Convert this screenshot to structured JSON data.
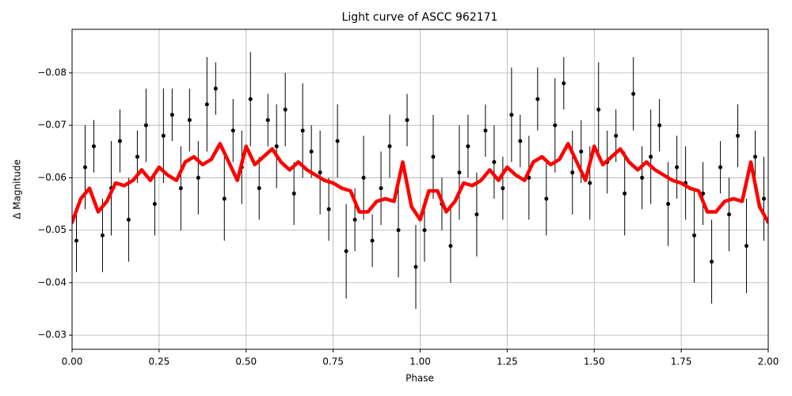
{
  "chart_data": {
    "type": "scatter",
    "title": "Light curve of ASCC 962171",
    "x_label": "Phase",
    "y_label": "Δ Magnitude",
    "xlim": [
      0,
      2
    ],
    "ylim": [
      -0.0273,
      -0.0883
    ],
    "grid": true,
    "xticks": [
      {
        "value": 0,
        "label": "0.00"
      },
      {
        "value": 0.25,
        "label": "0.25"
      },
      {
        "value": 0.5,
        "label": "0.50"
      },
      {
        "value": 0.75,
        "label": "0.75"
      },
      {
        "value": 1,
        "label": "1.00"
      },
      {
        "value": 1.25,
        "label": "1.25"
      },
      {
        "value": 1.5,
        "label": "1.50"
      },
      {
        "value": 1.75,
        "label": "1.75"
      },
      {
        "value": 2,
        "label": "2.00"
      }
    ],
    "yticks": [
      {
        "value": -0.08,
        "label": "−0.08"
      },
      {
        "value": -0.07,
        "label": "−0.07"
      },
      {
        "value": -0.06,
        "label": "−0.06"
      },
      {
        "value": -0.05,
        "label": "−0.05"
      },
      {
        "value": -0.04,
        "label": "−0.04"
      },
      {
        "value": -0.03,
        "label": "−0.03"
      }
    ],
    "series": [
      {
        "style": "errorbar",
        "color": "#000000",
        "x": [
          0.0125,
          0.0375,
          0.0625,
          0.0875,
          0.1125,
          0.1375,
          0.1625,
          0.1875,
          0.2125,
          0.2375,
          0.2625,
          0.2875,
          0.3125,
          0.3375,
          0.3625,
          0.3875,
          0.4125,
          0.4375,
          0.4625,
          0.4875,
          0.5125,
          0.5375,
          0.5625,
          0.5875,
          0.6125,
          0.6375,
          0.6625,
          0.6875,
          0.7125,
          0.7375,
          0.7625,
          0.7875,
          0.8125,
          0.8375,
          0.8625,
          0.8875,
          0.9125,
          0.9375,
          0.9625,
          0.9875,
          1.0125,
          1.0375,
          1.0625,
          1.0875,
          1.1125,
          1.1375,
          1.1625,
          1.1875,
          1.2125,
          1.2375,
          1.2625,
          1.2875,
          1.3125,
          1.3375,
          1.3625,
          1.3875,
          1.4125,
          1.4375,
          1.4625,
          1.4875,
          1.5125,
          1.5375,
          1.5625,
          1.5875,
          1.6125,
          1.6375,
          1.6625,
          1.6875,
          1.7125,
          1.7375,
          1.7625,
          1.7875,
          1.8125,
          1.8375,
          1.8625,
          1.8875,
          1.9125,
          1.9375,
          1.9625,
          1.9875
        ],
        "values": [
          -0.048,
          -0.062,
          -0.066,
          -0.049,
          -0.058,
          -0.067,
          -0.052,
          -0.064,
          -0.07,
          -0.055,
          -0.068,
          -0.072,
          -0.058,
          -0.071,
          -0.06,
          -0.074,
          -0.077,
          -0.056,
          -0.069,
          -0.062,
          -0.075,
          -0.058,
          -0.071,
          -0.066,
          -0.073,
          -0.057,
          -0.069,
          -0.065,
          -0.061,
          -0.054,
          -0.067,
          -0.046,
          -0.052,
          -0.06,
          -0.048,
          -0.058,
          -0.066,
          -0.05,
          -0.071,
          -0.043,
          -0.05,
          -0.064,
          -0.055,
          -0.047,
          -0.061,
          -0.066,
          -0.053,
          -0.069,
          -0.063,
          -0.058,
          -0.072,
          -0.067,
          -0.06,
          -0.075,
          -0.056,
          -0.07,
          -0.078,
          -0.061,
          -0.065,
          -0.059,
          -0.073,
          -0.063,
          -0.068,
          -0.057,
          -0.076,
          -0.06,
          -0.064,
          -0.07,
          -0.055,
          -0.062,
          -0.059,
          -0.049,
          -0.057,
          -0.044,
          -0.062,
          -0.053,
          -0.068,
          -0.047,
          -0.064,
          -0.056
        ],
        "errors": [
          0.006,
          0.008,
          0.005,
          0.007,
          0.009,
          0.006,
          0.008,
          0.005,
          0.007,
          0.006,
          0.009,
          0.005,
          0.008,
          0.006,
          0.007,
          0.009,
          0.005,
          0.008,
          0.006,
          0.007,
          0.009,
          0.006,
          0.005,
          0.008,
          0.007,
          0.006,
          0.009,
          0.005,
          0.008,
          0.006,
          0.007,
          0.009,
          0.006,
          0.008,
          0.005,
          0.007,
          0.006,
          0.009,
          0.005,
          0.008,
          0.006,
          0.008,
          0.005,
          0.007,
          0.009,
          0.006,
          0.008,
          0.005,
          0.007,
          0.006,
          0.009,
          0.005,
          0.008,
          0.006,
          0.007,
          0.009,
          0.005,
          0.008,
          0.006,
          0.007,
          0.009,
          0.006,
          0.005,
          0.008,
          0.007,
          0.006,
          0.009,
          0.005,
          0.008,
          0.006,
          0.007,
          0.009,
          0.006,
          0.008,
          0.005,
          0.007,
          0.006,
          0.009,
          0.005,
          0.008
        ]
      },
      {
        "style": "line",
        "color": "#ff0000",
        "x": [
          0,
          0.025,
          0.05,
          0.075,
          0.1,
          0.125,
          0.15,
          0.175,
          0.2,
          0.225,
          0.25,
          0.275,
          0.3,
          0.325,
          0.35,
          0.375,
          0.4,
          0.425,
          0.45,
          0.475,
          0.5,
          0.525,
          0.55,
          0.575,
          0.6,
          0.625,
          0.65,
          0.675,
          0.7,
          0.725,
          0.75,
          0.775,
          0.8,
          0.825,
          0.85,
          0.875,
          0.9,
          0.925,
          0.95,
          0.975,
          1,
          1.025,
          1.05,
          1.075,
          1.1,
          1.125,
          1.15,
          1.175,
          1.2,
          1.225,
          1.25,
          1.275,
          1.3,
          1.325,
          1.35,
          1.375,
          1.4,
          1.425,
          1.45,
          1.475,
          1.5,
          1.525,
          1.55,
          1.575,
          1.6,
          1.625,
          1.65,
          1.675,
          1.7,
          1.725,
          1.75,
          1.775,
          1.8,
          1.825,
          1.85,
          1.875,
          1.9,
          1.925,
          1.95,
          1.975,
          2
        ],
        "values": [
          -0.0515,
          -0.056,
          -0.058,
          -0.0535,
          -0.0555,
          -0.059,
          -0.0585,
          -0.0595,
          -0.0615,
          -0.0595,
          -0.062,
          -0.0605,
          -0.0595,
          -0.063,
          -0.064,
          -0.0625,
          -0.0635,
          -0.0665,
          -0.063,
          -0.0595,
          -0.066,
          -0.0625,
          -0.064,
          -0.0655,
          -0.063,
          -0.0615,
          -0.063,
          -0.0615,
          -0.0605,
          -0.0595,
          -0.059,
          -0.058,
          -0.0575,
          -0.0535,
          -0.0535,
          -0.0555,
          -0.056,
          -0.0555,
          -0.063,
          -0.0545,
          -0.052,
          -0.0575,
          -0.0575,
          -0.0535,
          -0.0555,
          -0.059,
          -0.0585,
          -0.0595,
          -0.0615,
          -0.0595,
          -0.062,
          -0.0605,
          -0.0595,
          -0.063,
          -0.064,
          -0.0625,
          -0.0635,
          -0.0665,
          -0.063,
          -0.0595,
          -0.066,
          -0.0625,
          -0.064,
          -0.0655,
          -0.063,
          -0.0615,
          -0.063,
          -0.0615,
          -0.0605,
          -0.0595,
          -0.059,
          -0.058,
          -0.0575,
          -0.0535,
          -0.0535,
          -0.0555,
          -0.056,
          -0.0555,
          -0.063,
          -0.0545,
          -0.0515
        ]
      }
    ]
  }
}
